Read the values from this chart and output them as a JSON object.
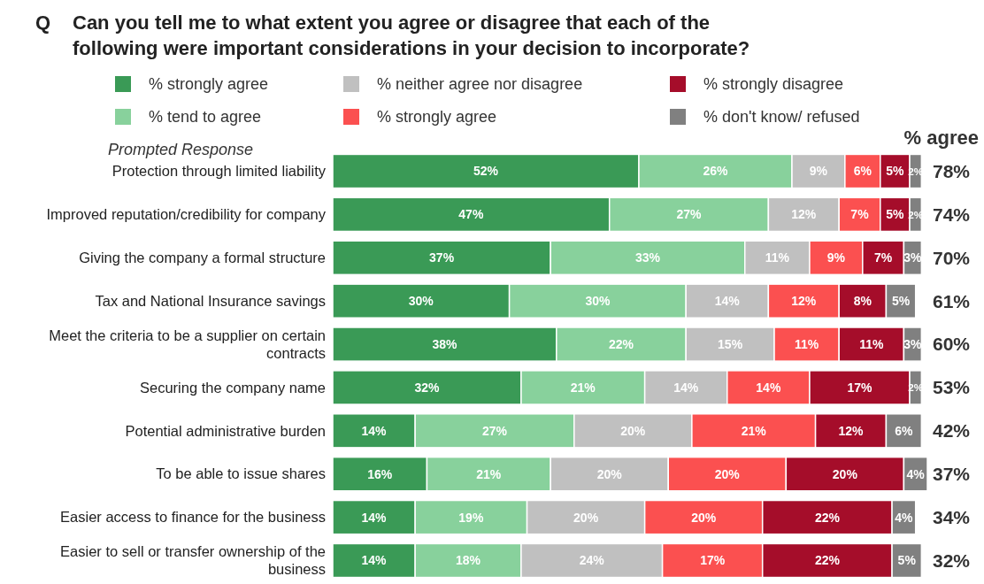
{
  "chart_data": {
    "type": "bar",
    "orientation": "horizontal",
    "stacked": true,
    "title": "Can you tell me to what extent you agree or disagree that each of the following were important considerations in your decision to incorporate?",
    "annotations": [
      "Q",
      "Prompted Response",
      "% agree",
      "78%",
      "74%",
      "70%",
      "61%",
      "60%",
      "53%",
      "42%",
      "37%",
      "34%",
      "32%"
    ],
    "categories": [
      "Protection through limited liability",
      "Improved reputation/credibility for company",
      "Giving the company a formal structure",
      "Tax and National Insurance savings",
      "Meet the criteria to be a supplier on certain contracts",
      "Securing the company name",
      "Potential administrative burden",
      "To be able to issue shares",
      "Easier access to finance for the business",
      "Easier to sell or transfer ownership of the business"
    ],
    "xlim": [
      0,
      101
    ],
    "legend": "top",
    "series": [
      {
        "name": "% strongly agree",
        "color": "#3a9a56",
        "values": [
          52,
          47,
          37,
          30,
          38,
          32,
          14,
          16,
          14,
          14
        ],
        "value_labels": [
          "52%",
          "47%",
          "37%",
          "30%",
          "38%",
          "32%",
          "14%",
          "16%",
          "14%",
          "14%"
        ]
      },
      {
        "name": "% tend to agree",
        "color": "#88d19c",
        "values": [
          26,
          27,
          33,
          30,
          22,
          21,
          27,
          21,
          19,
          18
        ],
        "value_labels": [
          "26%",
          "27%",
          "33%",
          "30%",
          "22%",
          "21%",
          "27%",
          "21%",
          "19%",
          "18%"
        ]
      },
      {
        "name": "% neither agree nor disagree",
        "color": "#c0c0c0",
        "values": [
          9,
          12,
          11,
          14,
          15,
          14,
          20,
          20,
          20,
          24
        ],
        "value_labels": [
          "9%",
          "12%",
          "11%",
          "14%",
          "15%",
          "14%",
          "20%",
          "20%",
          "20%",
          "24%"
        ]
      },
      {
        "name": "% strongly agree",
        "color": "#fb5050",
        "values": [
          6,
          7,
          9,
          12,
          11,
          14,
          21,
          20,
          20,
          17
        ],
        "value_labels": [
          "6%",
          "7%",
          "9%",
          "12%",
          "11%",
          "14%",
          "21%",
          "20%",
          "20%",
          "17%"
        ]
      },
      {
        "name": "% strongly disagree",
        "color": "#a50d2a",
        "values": [
          5,
          5,
          7,
          8,
          11,
          17,
          12,
          20,
          22,
          22
        ],
        "value_labels": [
          "5%",
          "5%",
          "7%",
          "8%",
          "11%",
          "17%",
          "12%",
          "20%",
          "22%",
          "22%"
        ]
      },
      {
        "name": "% don't know/  refused",
        "color": "#808080",
        "values": [
          2,
          2,
          3,
          5,
          3,
          2,
          6,
          4,
          4,
          5
        ],
        "value_labels": [
          "2%",
          "2%",
          "3%",
          "5%",
          "3%",
          "2%",
          "6%",
          "4%",
          "4%",
          "5%"
        ]
      }
    ]
  }
}
